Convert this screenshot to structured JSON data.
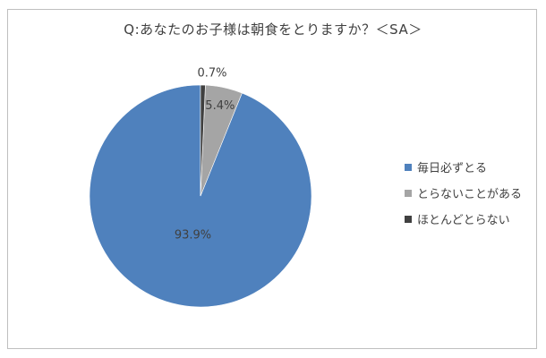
{
  "chart_data": {
    "type": "pie",
    "title": "Q:あなたのお子様は朝食をとりますか？＜SA＞",
    "categories": [
      "毎日必ずとる",
      "とらないことがある",
      "ほとんどとらない"
    ],
    "values": [
      93.9,
      5.4,
      0.7
    ],
    "data_labels": [
      "93.9%",
      "5.4%",
      "0.7%"
    ],
    "colors": [
      "#4f81bd",
      "#a5a5a5",
      "#404040"
    ],
    "legend_position": "right",
    "start_angle": "top, counter-clockwise"
  }
}
